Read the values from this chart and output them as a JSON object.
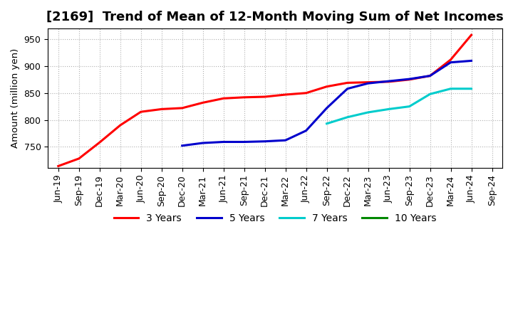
{
  "title": "[2169]  Trend of Mean of 12-Month Moving Sum of Net Incomes",
  "ylabel": "Amount (million yen)",
  "background_color": "#ffffff",
  "plot_background": "#ffffff",
  "grid_color": "#b0b0b0",
  "title_fontsize": 13,
  "axis_fontsize": 9,
  "legend_fontsize": 10,
  "ylim": [
    710,
    970
  ],
  "yticks": [
    750,
    800,
    850,
    900,
    950
  ],
  "xtick_labels": [
    "Jun-19",
    "Sep-19",
    "Dec-19",
    "Mar-20",
    "Jun-20",
    "Sep-20",
    "Dec-20",
    "Mar-21",
    "Jun-21",
    "Sep-21",
    "Dec-21",
    "Mar-22",
    "Jun-22",
    "Sep-22",
    "Dec-22",
    "Mar-23",
    "Jun-23",
    "Sep-23",
    "Dec-23",
    "Mar-24",
    "Jun-24",
    "Sep-24"
  ],
  "series": [
    {
      "label": "3 Years",
      "color": "#ff0000",
      "linewidth": 2.2,
      "x_indices": [
        0,
        1,
        2,
        3,
        4,
        5,
        6,
        7,
        8,
        9,
        10,
        11,
        12,
        13,
        14,
        15,
        16,
        17,
        18,
        19,
        20
      ],
      "y": [
        714,
        728,
        758,
        790,
        815,
        820,
        822,
        832,
        840,
        842,
        843,
        847,
        850,
        862,
        869,
        870,
        871,
        875,
        882,
        912,
        958
      ]
    },
    {
      "label": "5 Years",
      "color": "#0000cc",
      "linewidth": 2.2,
      "x_indices": [
        6,
        7,
        8,
        9,
        10,
        11,
        12,
        13,
        14,
        15,
        16,
        17,
        18,
        19,
        20
      ],
      "y": [
        752,
        757,
        759,
        759,
        760,
        762,
        780,
        822,
        858,
        868,
        872,
        876,
        882,
        907,
        910
      ]
    },
    {
      "label": "7 Years",
      "color": "#00cccc",
      "linewidth": 2.2,
      "x_indices": [
        13,
        14,
        15,
        16,
        17,
        18,
        19,
        20
      ],
      "y": [
        793,
        805,
        814,
        820,
        825,
        848,
        858,
        858
      ]
    },
    {
      "label": "10 Years",
      "color": "#008800",
      "linewidth": 2.2,
      "x_indices": [],
      "y": []
    }
  ]
}
